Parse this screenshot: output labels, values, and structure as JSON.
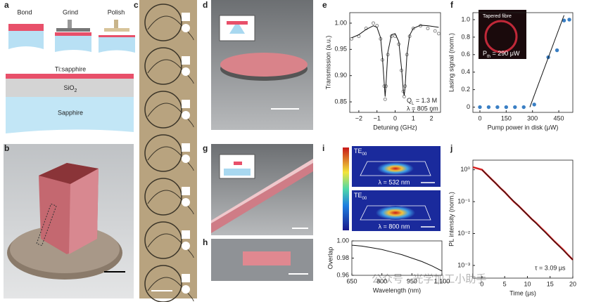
{
  "panel_labels": [
    "a",
    "b",
    "c",
    "d",
    "e",
    "f",
    "g",
    "h",
    "i",
    "j"
  ],
  "panel_a": {
    "steps": [
      "Bond",
      "Grind",
      "Polish"
    ],
    "layers": {
      "top": "Ti:sapphire",
      "middle": {
        "symbol": "SiO",
        "subscript": "2"
      },
      "bottom": "Sapphire"
    }
  },
  "panel_i": {
    "modes": [
      {
        "mode": {
          "symbol": "TE",
          "subscript": "00"
        },
        "wavelength": "λ = 532 nm"
      },
      {
        "mode": {
          "symbol": "TE",
          "subscript": "00"
        },
        "wavelength": "λ = 800 nm"
      }
    ]
  },
  "watermark": "公众号 · 光学加工小助手",
  "chart_data": [
    {
      "type": "line",
      "xlabel": "Detuning (GHz)",
      "ylabel": "Transmission (a.u.)",
      "x": [
        -2.4,
        -2,
        -1.6,
        -1.2,
        -1,
        -0.8,
        -0.7,
        -0.6,
        -0.55,
        -0.5,
        -0.4,
        -0.2,
        0,
        0.2,
        0.35,
        0.45,
        0.5,
        0.55,
        0.65,
        0.8,
        1,
        1.4,
        1.8,
        2.2,
        2.4
      ],
      "series": [
        {
          "color": "#8a8a8a",
          "mode": "markers",
          "values": [
            0.97,
            0.975,
            0.99,
            1.0,
            0.995,
            0.97,
            0.93,
            0.88,
            0.855,
            0.88,
            0.94,
            0.975,
            0.975,
            0.96,
            0.91,
            0.87,
            0.86,
            0.88,
            0.94,
            0.975,
            0.99,
            0.995,
            0.99,
            0.985,
            0.98
          ]
        },
        {
          "color": "#111111",
          "mode": "line",
          "values": [
            0.972,
            0.978,
            0.988,
            0.995,
            0.992,
            0.972,
            0.935,
            0.885,
            0.86,
            0.885,
            0.945,
            0.978,
            0.98,
            0.965,
            0.915,
            0.872,
            0.862,
            0.878,
            0.94,
            0.977,
            0.99,
            0.996,
            0.995,
            0.993,
            0.992
          ]
        }
      ],
      "xlim": [
        -2.5,
        2.5
      ],
      "ylim": [
        0.83,
        1.02
      ],
      "xticks": [
        {
          "value": -2,
          "label": "−2"
        },
        {
          "value": -1,
          "label": "−1"
        },
        0,
        1,
        2
      ],
      "yticks": [
        {
          "value": 0.85,
          "label": "0.85"
        },
        {
          "value": 0.9,
          "label": "0.90"
        },
        {
          "value": 0.95,
          "label": "0.95"
        },
        {
          "value": 1,
          "label": "1.00"
        }
      ],
      "q_label": {
        "symbol": "Q",
        "subscript": "L",
        "text": " = 1.3 M"
      },
      "wavelength_label": "λ = 805 nm"
    },
    {
      "type": "scatter",
      "xlabel": "Pump power in disk (μW)",
      "ylabel": "Lasing signal (norm.)",
      "x": [
        0,
        50,
        100,
        150,
        200,
        250,
        310,
        390,
        440,
        480,
        510
      ],
      "series": [
        {
          "color": "#3a7fc4",
          "mode": "markers",
          "values": [
            0,
            0,
            0,
            0,
            0,
            0,
            0.03,
            0.57,
            0.65,
            0.99,
            1.0
          ]
        },
        {
          "color": "#111111",
          "mode": "line",
          "x": [
            285,
            480
          ],
          "values": [
            0,
            1.05
          ]
        }
      ],
      "xlim": [
        -40,
        530
      ],
      "ylim": [
        -0.06,
        1.08
      ],
      "xticks": [
        0,
        150,
        300,
        450
      ],
      "yticks": [
        0,
        0.2,
        0.4,
        0.6,
        0.8,
        {
          "value": 1,
          "label": "1.0"
        }
      ],
      "inset": {
        "fibre_label": "Tapered fibre",
        "threshold": {
          "symbol": "P",
          "subscript": "th",
          "text": " = 290 μW"
        }
      }
    },
    {
      "type": "line",
      "xlabel": "Wavelength (nm)",
      "ylabel": "Overlap",
      "x": [
        650,
        700,
        750,
        800,
        850,
        900,
        950,
        1000,
        1050,
        1100
      ],
      "series": [
        {
          "color": "#111111",
          "mode": "line",
          "values": [
            0.995,
            0.994,
            0.992,
            0.99,
            0.987,
            0.984,
            0.98,
            0.976,
            0.971,
            0.965
          ]
        }
      ],
      "xlim": [
        650,
        1100
      ],
      "ylim": [
        0.96,
        1.0
      ],
      "xticks": [
        650,
        800,
        950,
        {
          "value": 1100,
          "label": "1,100"
        }
      ],
      "yticks": [
        0.96,
        0.98,
        {
          "value": 1,
          "label": "1.00"
        }
      ]
    },
    {
      "type": "line",
      "xlabel": "Time (μs)",
      "ylabel": "PL intensity (norm.)",
      "log_y": true,
      "x": [
        -2,
        -1,
        0,
        1,
        2,
        3,
        4,
        5,
        6,
        7,
        8,
        9,
        10,
        11,
        12,
        13,
        14,
        15,
        16,
        17,
        18,
        19,
        20
      ],
      "series": [
        {
          "color": "#d62020",
          "mode": "line",
          "values": [
            1.2,
            1.1,
            1.0,
            0.72,
            0.52,
            0.38,
            0.27,
            0.2,
            0.14,
            0.1,
            0.075,
            0.054,
            0.039,
            0.028,
            0.021,
            0.015,
            0.011,
            0.0078,
            0.0056,
            0.0041,
            0.003,
            0.0021,
            0.0015
          ]
        },
        {
          "color": "#111111",
          "mode": "line",
          "x": [
            0,
            20
          ],
          "values": [
            1,
            0.0015
          ]
        }
      ],
      "xlim": [
        -2,
        20
      ],
      "ylim": [
        0.0004,
        2
      ],
      "xticks": [
        0,
        5,
        10,
        15,
        20
      ],
      "yticks": [
        {
          "value": 1,
          "label": "10⁰"
        },
        {
          "value": 0.1,
          "label": "10⁻¹"
        },
        {
          "value": 0.01,
          "label": "10⁻²"
        },
        {
          "value": 0.001,
          "label": "10⁻³"
        }
      ],
      "annotation": "τ = 3.09 μs"
    }
  ]
}
